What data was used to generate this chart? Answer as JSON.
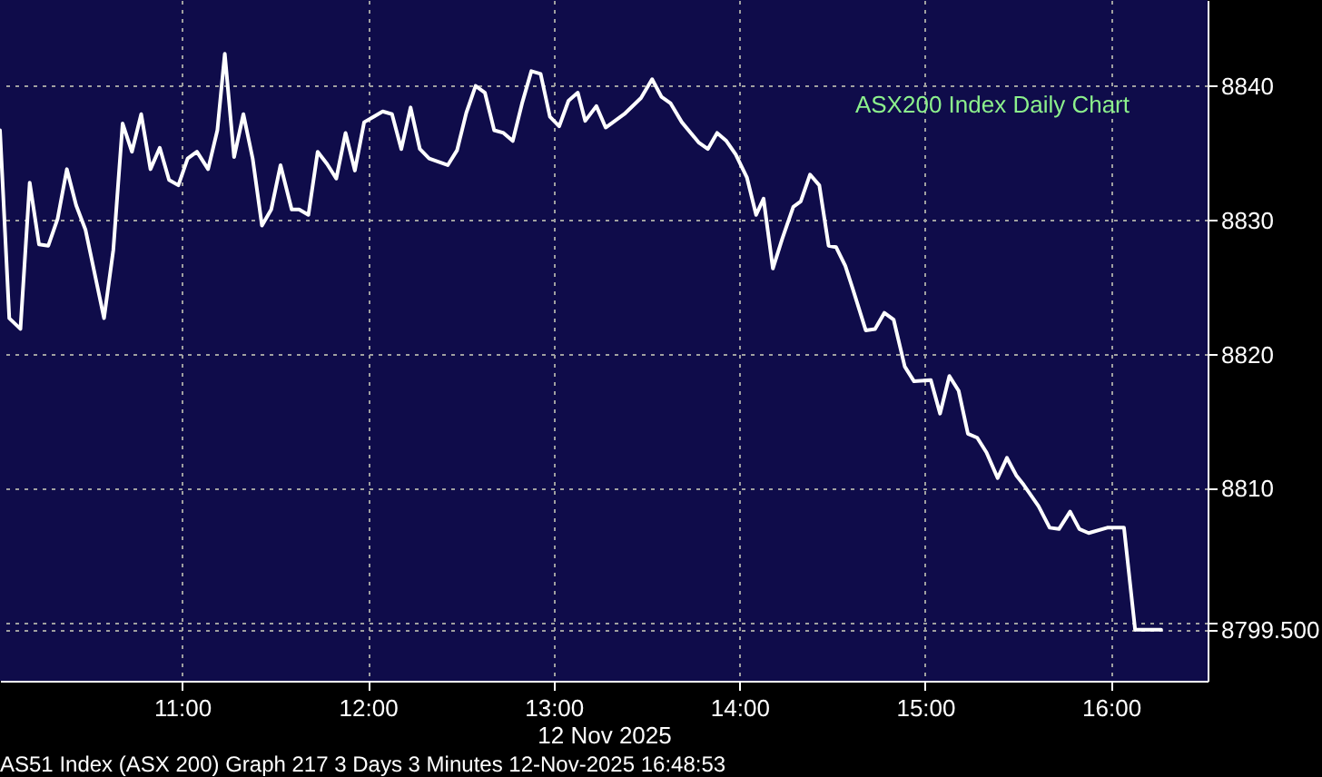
{
  "chart_data": {
    "type": "line",
    "title": "ASX200 Index Daily Chart",
    "xlabel": "12 Nov 2025",
    "x": [
      10.02,
      10.07,
      10.13,
      10.18,
      10.23,
      10.28,
      10.33,
      10.38,
      10.43,
      10.48,
      10.58,
      10.63,
      10.68,
      10.73,
      10.78,
      10.83,
      10.88,
      10.93,
      10.98,
      11.03,
      11.08,
      11.14,
      11.19,
      11.23,
      11.28,
      11.33,
      11.38,
      11.43,
      11.48,
      11.53,
      11.59,
      11.63,
      11.68,
      11.73,
      11.78,
      11.83,
      11.88,
      11.93,
      11.98,
      12.03,
      12.08,
      12.13,
      12.18,
      12.23,
      12.28,
      12.33,
      12.43,
      12.48,
      12.53,
      12.58,
      12.63,
      12.68,
      12.73,
      12.78,
      12.83,
      12.88,
      12.93,
      12.98,
      13.03,
      13.08,
      13.13,
      13.17,
      13.23,
      13.28,
      13.38,
      13.47,
      13.53,
      13.58,
      13.63,
      13.69,
      13.78,
      13.83,
      13.88,
      13.93,
      13.98,
      14.04,
      14.09,
      14.13,
      14.18,
      14.23,
      14.29,
      14.33,
      14.38,
      14.43,
      14.48,
      14.52,
      14.57,
      14.61,
      14.68,
      14.73,
      14.78,
      14.83,
      14.89,
      14.94,
      15.03,
      15.08,
      15.13,
      15.18,
      15.23,
      15.28,
      15.33,
      15.39,
      15.44,
      15.49,
      15.53,
      15.61,
      15.67,
      15.72,
      15.78,
      15.83,
      15.88,
      15.98,
      16.07,
      16.13,
      16.27
    ],
    "values": [
      8836.7,
      8822.7,
      8821.9,
      8832.8,
      8828.2,
      8828.1,
      8830.1,
      8833.8,
      8831.1,
      8829.3,
      8822.7,
      8827.8,
      8837.2,
      8835.1,
      8837.9,
      8833.8,
      8835.4,
      8833.0,
      8832.6,
      8834.6,
      8835.1,
      8833.8,
      8836.7,
      8842.4,
      8834.7,
      8837.9,
      8834.6,
      8829.6,
      8830.8,
      8834.1,
      8830.8,
      8830.8,
      8830.4,
      8835.1,
      8834.2,
      8833.1,
      8836.5,
      8833.7,
      8837.3,
      8837.7,
      8838.1,
      8837.9,
      8835.3,
      8838.4,
      8835.3,
      8834.6,
      8834.1,
      8835.2,
      8838.0,
      8840.0,
      8839.5,
      8836.7,
      8836.5,
      8835.9,
      8838.7,
      8841.1,
      8840.9,
      8837.7,
      8837.0,
      8838.9,
      8839.5,
      8837.4,
      8838.5,
      8836.9,
      8837.9,
      8839.1,
      8840.5,
      8839.2,
      8838.7,
      8837.3,
      8835.8,
      8835.3,
      8836.5,
      8835.9,
      8834.9,
      8833.2,
      8830.4,
      8831.6,
      8826.4,
      8828.6,
      8831.0,
      8831.4,
      8833.4,
      8832.6,
      8828.1,
      8828.0,
      8826.6,
      8824.9,
      8821.8,
      8821.9,
      8823.1,
      8822.6,
      8819.1,
      8818.0,
      8818.1,
      8815.6,
      8818.4,
      8817.3,
      8814.1,
      8813.8,
      8812.7,
      8810.8,
      8812.3,
      8811.0,
      8810.3,
      8808.7,
      8807.1,
      8807.0,
      8808.3,
      8807.0,
      8806.7,
      8807.1,
      8807.1,
      8799.5,
      8799.5
    ],
    "color": "#ffffff",
    "xlim": [
      10.02,
      16.52
    ],
    "ylim": [
      8795.7,
      8846.4
    ],
    "xticks": [
      {
        "value": 11,
        "label": "11:00"
      },
      {
        "value": 12,
        "label": "12:00"
      },
      {
        "value": 13,
        "label": "13:00"
      },
      {
        "value": 14,
        "label": "14:00"
      },
      {
        "value": 15,
        "label": "15:00"
      },
      {
        "value": 16,
        "label": "16:00"
      }
    ],
    "yticks": [
      {
        "value": 8799.5,
        "label": "8799.500"
      },
      {
        "value": 8800,
        "label": null
      },
      8810,
      8820,
      8830,
      8840
    ],
    "grid": true,
    "annotations": [
      "AS51 Index (ASX 200) Graph 217 3 Days 3 Minutes  12-Nov-2025 16:48:53"
    ]
  }
}
